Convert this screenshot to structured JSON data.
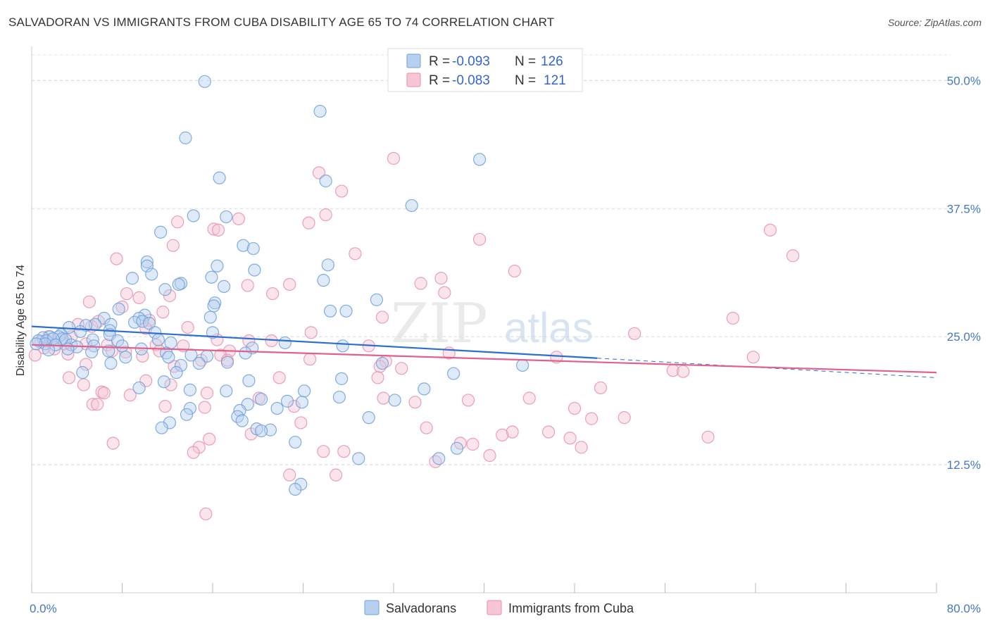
{
  "title": "SALVADORAN VS IMMIGRANTS FROM CUBA DISABILITY AGE 65 TO 74 CORRELATION CHART",
  "source": "Source: ZipAtlas.com",
  "watermark": {
    "zip": "ZIP",
    "atlas": "atlas"
  },
  "colors": {
    "blue": "#6c9fdc",
    "blue_fill": "#b7d0f0",
    "pink": "#e88fab",
    "pink_fill": "#f6c6d5",
    "blue_line": "#2d6fcf",
    "pink_line": "#e0628c",
    "tick": "#4477c4"
  },
  "chart_data": {
    "type": "scatter",
    "title": "SALVADORAN VS IMMIGRANTS FROM CUBA DISABILITY AGE 65 TO 74 CORRELATION CHART",
    "xlabel": "",
    "ylabel": "Disability Age 65 to 74",
    "xlim": [
      0,
      80
    ],
    "ylim": [
      0,
      52.5
    ],
    "x_tick_labels": [
      "0.0%",
      "80.0%"
    ],
    "y_ticks": [
      12.5,
      25.0,
      37.5,
      50.0
    ],
    "y_tick_labels": [
      "12.5%",
      "25.0%",
      "37.5%",
      "50.0%"
    ],
    "legend": [
      {
        "name": "Salvadorans",
        "r_label": "R =",
        "r": "-0.093",
        "n_label": "N =",
        "n": "126"
      },
      {
        "name": "Immigrants from Cuba",
        "r_label": "R =",
        "r": "-0.083",
        "n_label": "N =",
        "n": "121"
      }
    ],
    "trend": [
      {
        "series": "Salvadorans",
        "x0": 0,
        "y0": 26.0,
        "x1": 50,
        "y1": 22.9,
        "dash_to_x": 80,
        "dash_to_y": 21.0
      },
      {
        "series": "Immigrants from Cuba",
        "x0": 0,
        "y0": 24.2,
        "x1": 80,
        "y1": 21.5
      }
    ],
    "series": [
      {
        "name": "Salvadorans",
        "points": [
          [
            15.3,
            49.9
          ],
          [
            25.5,
            47.0
          ],
          [
            13.6,
            44.4
          ],
          [
            39.6,
            42.3
          ],
          [
            16.6,
            40.5
          ],
          [
            26.0,
            40.2
          ],
          [
            33.6,
            37.8
          ],
          [
            14.3,
            36.8
          ],
          [
            17.2,
            36.7
          ],
          [
            11.4,
            35.2
          ],
          [
            18.7,
            33.9
          ],
          [
            19.6,
            33.6
          ],
          [
            10.2,
            32.3
          ],
          [
            10.2,
            31.9
          ],
          [
            16.4,
            31.9
          ],
          [
            19.7,
            31.5
          ],
          [
            26.2,
            32.0
          ],
          [
            10.6,
            31.1
          ],
          [
            8.9,
            30.7
          ],
          [
            15.9,
            30.8
          ],
          [
            25.8,
            30.5
          ],
          [
            13.2,
            30.2
          ],
          [
            13.0,
            30.1
          ],
          [
            17.0,
            29.9
          ],
          [
            11.8,
            29.6
          ],
          [
            30.5,
            28.6
          ],
          [
            16.2,
            28.3
          ],
          [
            16.1,
            28.0
          ],
          [
            7.7,
            27.7
          ],
          [
            10.0,
            27.1
          ],
          [
            9.5,
            26.8
          ],
          [
            6.4,
            26.8
          ],
          [
            15.8,
            26.9
          ],
          [
            26.4,
            27.5
          ],
          [
            27.8,
            27.5
          ],
          [
            9.1,
            26.4
          ],
          [
            5.6,
            26.2
          ],
          [
            7.0,
            26.2
          ],
          [
            9.8,
            26.5
          ],
          [
            10.4,
            26.3
          ],
          [
            4.8,
            26.1
          ],
          [
            3.3,
            25.9
          ],
          [
            4.3,
            25.5
          ],
          [
            6.9,
            25.6
          ],
          [
            2.6,
            25.2
          ],
          [
            6.9,
            25.2
          ],
          [
            10.9,
            25.4
          ],
          [
            16.0,
            25.4
          ],
          [
            1.6,
            25.0
          ],
          [
            2.4,
            25.0
          ],
          [
            1.0,
            24.9
          ],
          [
            2.7,
            24.8
          ],
          [
            5.4,
            24.7
          ],
          [
            0.6,
            24.6
          ],
          [
            1.3,
            24.6
          ],
          [
            1.9,
            24.8
          ],
          [
            3.0,
            24.7
          ],
          [
            7.6,
            24.6
          ],
          [
            11.2,
            24.7
          ],
          [
            1.2,
            24.3
          ],
          [
            0.4,
            24.3
          ],
          [
            2.1,
            24.2
          ],
          [
            3.5,
            24.2
          ],
          [
            4.0,
            24.0
          ],
          [
            5.5,
            24.1
          ],
          [
            8.0,
            24.1
          ],
          [
            12.3,
            24.4
          ],
          [
            22.4,
            24.4
          ],
          [
            27.5,
            24.1
          ],
          [
            19.5,
            23.9
          ],
          [
            9.7,
            23.8
          ],
          [
            1.5,
            23.7
          ],
          [
            3.2,
            23.8
          ],
          [
            5.3,
            23.5
          ],
          [
            6.8,
            23.6
          ],
          [
            11.9,
            23.4
          ],
          [
            18.9,
            23.4
          ],
          [
            14.1,
            23.2
          ],
          [
            15.5,
            23.1
          ],
          [
            8.3,
            23.0
          ],
          [
            12.1,
            23.0
          ],
          [
            17.3,
            22.5
          ],
          [
            13.2,
            22.2
          ],
          [
            14.8,
            22.4
          ],
          [
            7.0,
            22.4
          ],
          [
            43.4,
            22.2
          ],
          [
            31.0,
            22.4
          ],
          [
            4.5,
            21.5
          ],
          [
            12.8,
            21.5
          ],
          [
            37.3,
            21.4
          ],
          [
            27.4,
            20.9
          ],
          [
            19.2,
            20.7
          ],
          [
            11.7,
            20.6
          ],
          [
            9.5,
            20.0
          ],
          [
            14.0,
            19.8
          ],
          [
            17.2,
            19.7
          ],
          [
            24.1,
            19.7
          ],
          [
            34.7,
            19.9
          ],
          [
            27.2,
            19.1
          ],
          [
            32.1,
            18.8
          ],
          [
            20.3,
            18.9
          ],
          [
            22.6,
            18.7
          ],
          [
            23.9,
            18.6
          ],
          [
            19.1,
            18.4
          ],
          [
            14.0,
            18.0
          ],
          [
            21.7,
            18.0
          ],
          [
            18.4,
            17.8
          ],
          [
            18.2,
            17.2
          ],
          [
            13.7,
            17.4
          ],
          [
            29.8,
            17.1
          ],
          [
            18.6,
            16.8
          ],
          [
            12.2,
            16.6
          ],
          [
            19.9,
            16.0
          ],
          [
            21.1,
            15.9
          ],
          [
            11.5,
            16.1
          ],
          [
            20.3,
            15.8
          ],
          [
            23.3,
            14.7
          ],
          [
            37.6,
            14.1
          ],
          [
            28.9,
            13.1
          ],
          [
            36.0,
            13.1
          ],
          [
            23.8,
            10.6
          ],
          [
            23.3,
            10.1
          ]
        ]
      },
      {
        "name": "Immigrants from Cuba",
        "points": [
          [
            32.0,
            42.4
          ],
          [
            25.4,
            41.0
          ],
          [
            27.4,
            39.2
          ],
          [
            26.0,
            36.9
          ],
          [
            18.3,
            36.5
          ],
          [
            12.9,
            36.2
          ],
          [
            24.5,
            36.1
          ],
          [
            16.1,
            35.5
          ],
          [
            16.5,
            35.4
          ],
          [
            65.3,
            35.4
          ],
          [
            39.6,
            34.5
          ],
          [
            12.5,
            33.9
          ],
          [
            28.6,
            33.1
          ],
          [
            67.3,
            32.9
          ],
          [
            7.5,
            32.6
          ],
          [
            42.7,
            31.4
          ],
          [
            36.2,
            30.7
          ],
          [
            34.4,
            30.2
          ],
          [
            22.8,
            30.1
          ],
          [
            19.1,
            30.0
          ],
          [
            21.3,
            29.2
          ],
          [
            36.5,
            29.3
          ],
          [
            8.4,
            29.2
          ],
          [
            9.5,
            28.8
          ],
          [
            12.2,
            29.0
          ],
          [
            5.1,
            28.4
          ],
          [
            8.0,
            27.9
          ],
          [
            11.6,
            27.4
          ],
          [
            31.0,
            26.9
          ],
          [
            62.0,
            26.8
          ],
          [
            5.9,
            26.5
          ],
          [
            10.4,
            26.6
          ],
          [
            4.1,
            26.2
          ],
          [
            5.3,
            26.0
          ],
          [
            13.8,
            25.9
          ],
          [
            10.1,
            25.8
          ],
          [
            24.7,
            25.4
          ],
          [
            53.3,
            25.3
          ],
          [
            3.5,
            25.0
          ],
          [
            1.5,
            25.0
          ],
          [
            16.4,
            24.7
          ],
          [
            19.2,
            24.6
          ],
          [
            21.2,
            24.6
          ],
          [
            0.8,
            24.5
          ],
          [
            2.9,
            24.3
          ],
          [
            4.8,
            24.3
          ],
          [
            6.7,
            24.2
          ],
          [
            11.0,
            24.2
          ],
          [
            13.4,
            24.1
          ],
          [
            29.8,
            24.1
          ],
          [
            1.1,
            23.9
          ],
          [
            2.0,
            23.8
          ],
          [
            7.1,
            23.6
          ],
          [
            8.3,
            23.5
          ],
          [
            11.3,
            23.6
          ],
          [
            17.5,
            23.6
          ],
          [
            3.2,
            23.3
          ],
          [
            16.7,
            23.2
          ],
          [
            36.9,
            23.4
          ],
          [
            0.3,
            23.2
          ],
          [
            9.8,
            23.1
          ],
          [
            15.0,
            22.7
          ],
          [
            17.3,
            22.7
          ],
          [
            31.3,
            22.6
          ],
          [
            46.4,
            23.0
          ],
          [
            63.8,
            23.0
          ],
          [
            24.6,
            22.8
          ],
          [
            4.8,
            22.3
          ],
          [
            12.6,
            22.1
          ],
          [
            30.8,
            22.1
          ],
          [
            32.7,
            21.9
          ],
          [
            56.7,
            21.7
          ],
          [
            57.6,
            21.6
          ],
          [
            3.3,
            21.0
          ],
          [
            10.1,
            20.7
          ],
          [
            21.9,
            21.0
          ],
          [
            30.6,
            21.0
          ],
          [
            4.6,
            20.3
          ],
          [
            12.3,
            20.3
          ],
          [
            50.3,
            20.0
          ],
          [
            6.2,
            19.6
          ],
          [
            6.4,
            19.5
          ],
          [
            15.5,
            19.5
          ],
          [
            8.7,
            19.3
          ],
          [
            20.1,
            19.0
          ],
          [
            31.1,
            19.0
          ],
          [
            44.0,
            19.0
          ],
          [
            38.6,
            18.8
          ],
          [
            5.4,
            18.4
          ],
          [
            5.8,
            18.4
          ],
          [
            11.8,
            18.2
          ],
          [
            15.3,
            18.1
          ],
          [
            23.2,
            18.2
          ],
          [
            33.9,
            18.6
          ],
          [
            48.0,
            18.0
          ],
          [
            49.5,
            17.0
          ],
          [
            52.4,
            17.1
          ],
          [
            23.8,
            16.6
          ],
          [
            34.9,
            16.1
          ],
          [
            45.7,
            15.7
          ],
          [
            42.5,
            15.7
          ],
          [
            41.6,
            15.4
          ],
          [
            59.8,
            15.2
          ],
          [
            15.7,
            15.0
          ],
          [
            47.6,
            15.1
          ],
          [
            7.2,
            14.6
          ],
          [
            37.9,
            14.6
          ],
          [
            39.0,
            14.5
          ],
          [
            14.8,
            14.2
          ],
          [
            48.6,
            14.2
          ],
          [
            25.8,
            13.8
          ],
          [
            14.3,
            13.7
          ],
          [
            27.6,
            13.8
          ],
          [
            40.5,
            13.4
          ],
          [
            35.7,
            12.8
          ],
          [
            22.8,
            11.5
          ],
          [
            26.9,
            11.5
          ],
          [
            15.4,
            7.7
          ],
          [
            19.4,
            15.5
          ]
        ]
      }
    ]
  }
}
